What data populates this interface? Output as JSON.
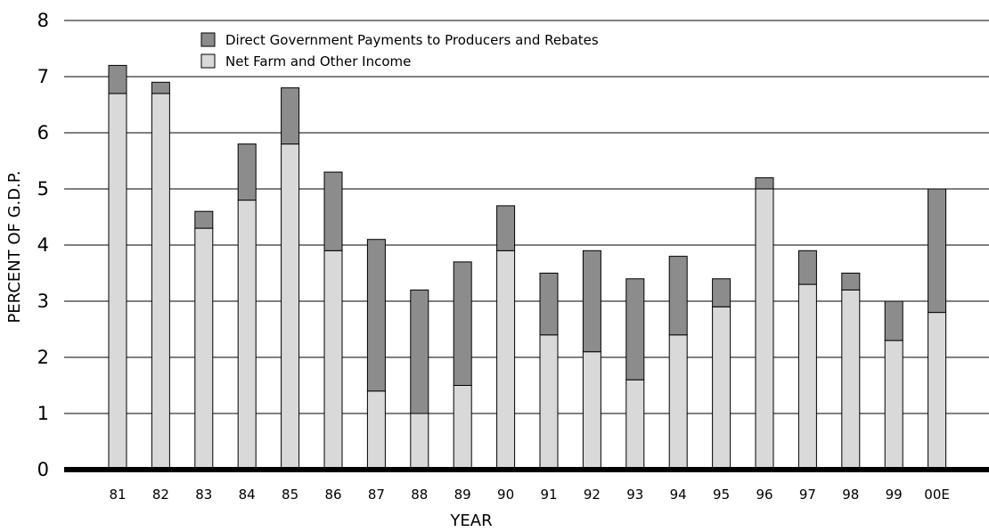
{
  "chart_data": {
    "type": "bar",
    "stacked": true,
    "title": "",
    "xlabel": "YEAR",
    "ylabel": "PERCENT OF G.D.P.",
    "ylim": [
      0,
      8
    ],
    "yticks": [
      "0",
      "1",
      "2",
      "3",
      "4",
      "5",
      "6",
      "7",
      "8"
    ],
    "grid": true,
    "legend_position": "top-left",
    "categories": [
      "81",
      "82",
      "83",
      "84",
      "85",
      "86",
      "87",
      "88",
      "89",
      "90",
      "91",
      "92",
      "93",
      "94",
      "95",
      "96",
      "97",
      "98",
      "99",
      "00E"
    ],
    "series": [
      {
        "name": "Net Farm and Other Income",
        "color": "#d9d9d9",
        "values": [
          6.7,
          6.7,
          4.3,
          4.8,
          5.8,
          3.9,
          1.4,
          1.0,
          1.5,
          3.9,
          2.4,
          2.1,
          1.6,
          2.4,
          2.9,
          5.0,
          3.3,
          3.2,
          2.3,
          2.8
        ]
      },
      {
        "name": "Direct Government Payments to Producers and Rebates",
        "color": "#8c8c8c",
        "values": [
          0.5,
          0.2,
          0.3,
          1.0,
          1.0,
          1.4,
          2.7,
          2.2,
          2.2,
          0.8,
          1.1,
          1.8,
          1.8,
          1.4,
          0.5,
          0.2,
          0.6,
          0.3,
          0.7,
          2.2
        ]
      }
    ],
    "legend_order": [
      1,
      0
    ]
  }
}
